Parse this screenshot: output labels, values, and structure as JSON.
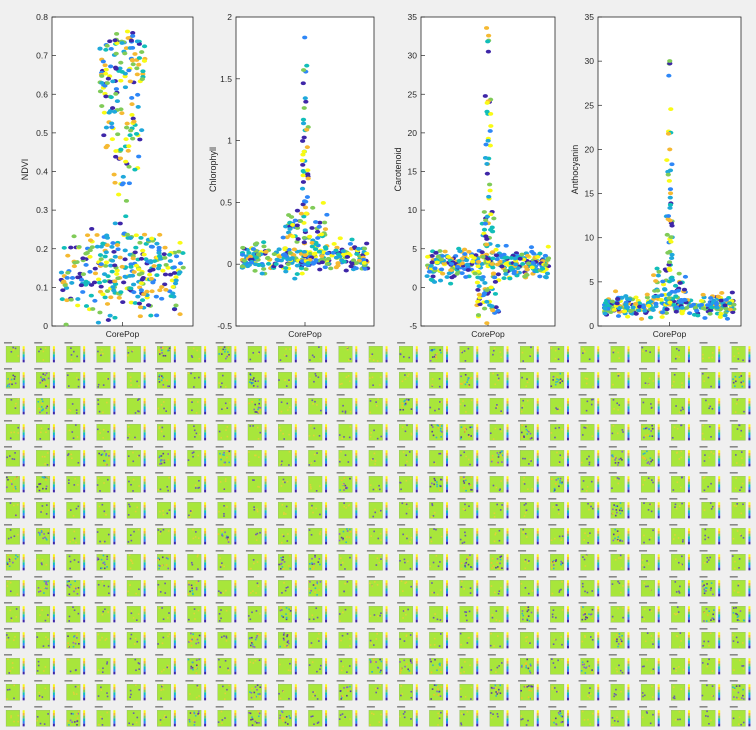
{
  "figure": {
    "colors": {
      "background": "#f0f0f0",
      "axes_bg": "#ffffff",
      "axes_line": "#262626",
      "palette": [
        "#3e26a8",
        "#2e87f7",
        "#12beb9",
        "#80cb58",
        "#f5b932",
        "#f9fb15",
        "#1fa8db"
      ]
    },
    "thumbnail_grid": {
      "rows": 15,
      "cols": 25,
      "plot_color": "#a8e63b",
      "label_icon": "colorbar-icon"
    }
  },
  "chart_data": [
    {
      "type": "scatter",
      "xlabel": "CorePop",
      "ylabel": "NDVI",
      "ylim": [
        0,
        0.8
      ],
      "yticks": [
        "0",
        "0.1",
        "0.2",
        "0.3",
        "0.4",
        "0.5",
        "0.6",
        "0.7",
        "0.8"
      ],
      "clusters": [
        {
          "center": 0.13,
          "spread": 0.05,
          "count": 260,
          "width": 0.95
        },
        {
          "center": 0.21,
          "spread": 0.02,
          "count": 40,
          "width": 0.55
        },
        {
          "center": 0.35,
          "spread": 0.05,
          "count": 15,
          "width": 0.12
        },
        {
          "center": 0.52,
          "spread": 0.07,
          "count": 60,
          "width": 0.3
        },
        {
          "center": 0.66,
          "spread": 0.05,
          "count": 70,
          "width": 0.35
        },
        {
          "center": 0.73,
          "spread": 0.02,
          "count": 20,
          "width": 0.22
        }
      ]
    },
    {
      "type": "scatter",
      "xlabel": "CorePop",
      "ylabel": "Chlorophyll",
      "ylim": [
        -0.5,
        2
      ],
      "yticks": [
        "-0.5",
        "0",
        "0.5",
        "1",
        "1.5",
        "2"
      ],
      "clusters": [
        {
          "center": 0.05,
          "spread": 0.06,
          "count": 280,
          "width": 1.0
        },
        {
          "center": 0.25,
          "spread": 0.12,
          "count": 60,
          "width": 0.35
        },
        {
          "center": 0.85,
          "spread": 0.3,
          "count": 30,
          "width": 0.06
        },
        {
          "center": 1.4,
          "spread": 0.2,
          "count": 8,
          "width": 0.03
        },
        {
          "center": 1.85,
          "spread": 0.01,
          "count": 1,
          "width": 0.01
        }
      ]
    },
    {
      "type": "scatter",
      "xlabel": "CorePop",
      "ylabel": "Carotenoid",
      "ylim": [
        -5,
        35
      ],
      "yticks": [
        "-5",
        "0",
        "5",
        "10",
        "15",
        "20",
        "25",
        "30",
        "35"
      ],
      "clusters": [
        {
          "center": 3,
          "spread": 1.0,
          "count": 300,
          "width": 1.0
        },
        {
          "center": -1.5,
          "spread": 1.5,
          "count": 40,
          "width": 0.2
        },
        {
          "center": 7,
          "spread": 2,
          "count": 25,
          "width": 0.1
        },
        {
          "center": 18,
          "spread": 6,
          "count": 25,
          "width": 0.05
        },
        {
          "center": 31,
          "spread": 1.5,
          "count": 4,
          "width": 0.02
        }
      ]
    },
    {
      "type": "scatter",
      "xlabel": "CorePop",
      "ylabel": "Anthocyanin",
      "ylim": [
        0,
        35
      ],
      "yticks": [
        "0",
        "5",
        "10",
        "15",
        "20",
        "25",
        "30",
        "35"
      ],
      "clusters": [
        {
          "center": 2.3,
          "spread": 0.6,
          "count": 300,
          "width": 1.0
        },
        {
          "center": 4.5,
          "spread": 1.2,
          "count": 40,
          "width": 0.25
        },
        {
          "center": 12,
          "spread": 4,
          "count": 30,
          "width": 0.05
        },
        {
          "center": 22,
          "spread": 3,
          "count": 8,
          "width": 0.02
        },
        {
          "center": 29.8,
          "spread": 0.6,
          "count": 3,
          "width": 0.01
        }
      ]
    }
  ]
}
